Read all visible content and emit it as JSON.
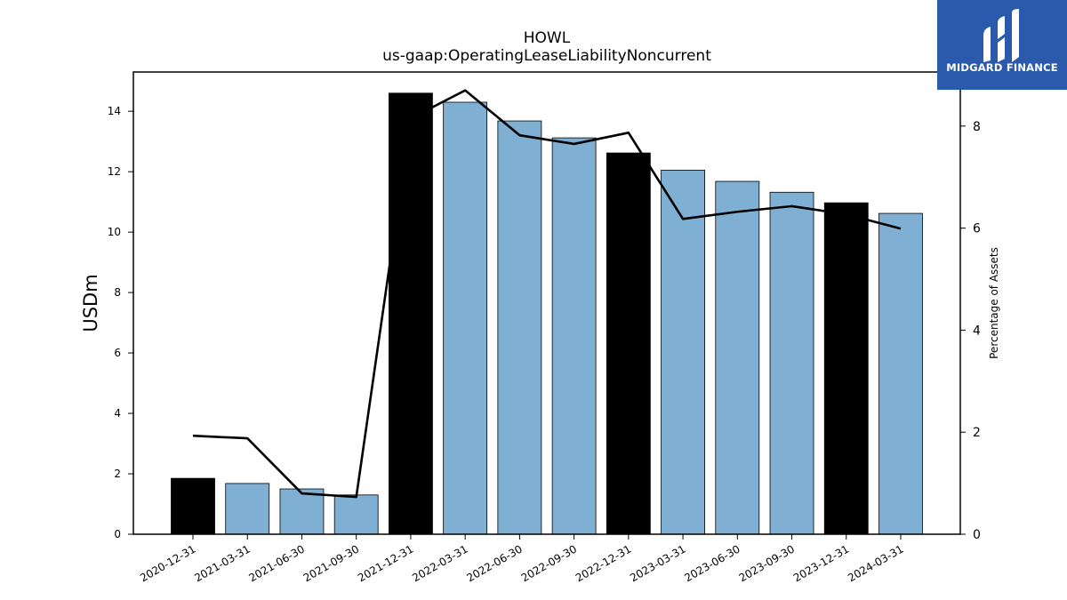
{
  "logo": {
    "text": "MIDGARD FINANCE",
    "icon": "midgard-finance-logo-icon",
    "color": "#2b5aad"
  },
  "chart_data": {
    "type": "bar",
    "title": "HOWL",
    "subtitle": "us-gaap:OperatingLeaseLiabilityNoncurrent",
    "ylabel": "USDm",
    "y2label": "Percentage of Assets",
    "ylim": [
      0,
      15.3
    ],
    "y2lim": [
      0,
      9.06
    ],
    "yticks": [
      0,
      2,
      4,
      6,
      8,
      10,
      12,
      14
    ],
    "y2ticks": [
      0,
      2,
      4,
      6,
      8
    ],
    "categories": [
      "2020-12-31",
      "2021-03-31",
      "2021-06-30",
      "2021-09-30",
      "2021-12-31",
      "2022-03-31",
      "2022-06-30",
      "2022-09-30",
      "2022-12-31",
      "2023-03-31",
      "2023-06-30",
      "2023-09-30",
      "2023-12-31",
      "2024-03-31"
    ],
    "series": [
      {
        "kind": "bar",
        "axis": "left",
        "values": [
          1.85,
          1.68,
          1.5,
          1.3,
          14.6,
          14.3,
          13.68,
          13.12,
          12.62,
          12.05,
          11.68,
          11.32,
          10.97,
          10.62
        ],
        "colors": [
          "#000000",
          "#7fafd2",
          "#7fafd2",
          "#7fafd2",
          "#000000",
          "#7fafd2",
          "#7fafd2",
          "#7fafd2",
          "#000000",
          "#7fafd2",
          "#7fafd2",
          "#7fafd2",
          "#000000",
          "#7fafd2"
        ]
      },
      {
        "kind": "line",
        "axis": "right",
        "color": "#000000",
        "values": [
          1.93,
          1.88,
          0.8,
          0.73,
          8.15,
          8.7,
          7.82,
          7.65,
          7.87,
          6.18,
          6.32,
          6.43,
          6.27,
          5.99
        ]
      }
    ],
    "grid": false,
    "legend": "none"
  }
}
